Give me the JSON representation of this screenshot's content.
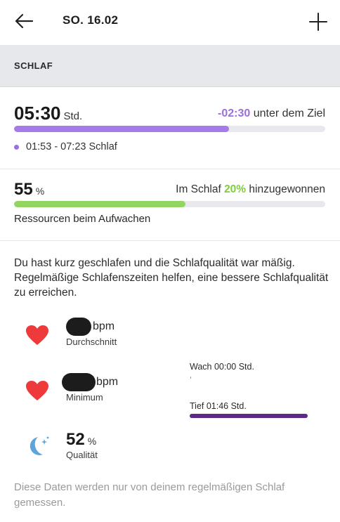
{
  "header": {
    "back_icon": "arrow-left-icon",
    "date": "SO. 16.02",
    "add_icon": "plus-icon"
  },
  "section": {
    "title": "SCHLAF"
  },
  "sleep_duration": {
    "value": "05:30",
    "unit": "Std.",
    "goal_delta": "-02:30",
    "goal_text": "unter dem Ziel",
    "progress_fraction": 0.69,
    "bar_color": "#a47be8",
    "time_range": "01:53 - 07:23 Schlaf"
  },
  "resources": {
    "value": "55",
    "unit": "%",
    "gain_prefix": "Im Schlaf",
    "gain_value": "20%",
    "gain_suffix": "hinzugewonnen",
    "progress_fraction": 0.55,
    "bar_color": "#92d662",
    "label": "Ressourcen beim Aufwachen"
  },
  "description": "Du hast kurz geschlafen und die Schlafqualität war mäßig. Regelmäßige Schlafenszeiten helfen, eine bessere Schlafqualität zu erreichen.",
  "stats": {
    "avg_hr": {
      "unit": "bpm",
      "label": "Durchschnitt",
      "icon": "heart-icon"
    },
    "min_hr": {
      "unit": "bpm",
      "label": "Minimum",
      "icon": "heart-icon"
    },
    "quality": {
      "value": "52",
      "unit": "%",
      "label": "Qualität",
      "icon": "moon-icon"
    }
  },
  "phases": {
    "awake": "Wach 00:00 Std.",
    "deep": "Tief 01:46 Std.",
    "deep_color": "#5a2a86"
  },
  "footer_note": "Diese Daten werden nur von deinem regelmäßigen Schlaf gemessen.",
  "colors": {
    "heart": "#ee3a3a",
    "moon": "#5aa6dc",
    "accent_purple": "#9a6fe0",
    "accent_green": "#7fcf3c"
  }
}
